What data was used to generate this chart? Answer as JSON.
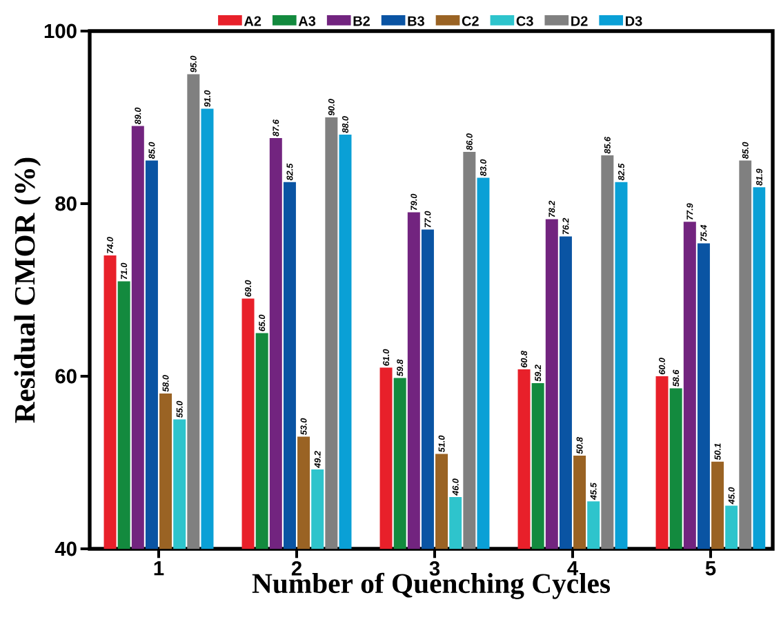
{
  "chart_data": {
    "type": "bar",
    "xlabel": "Number of Quenching Cycles",
    "ylabel": "Residual CMOR (%)",
    "categories": [
      "1",
      "2",
      "3",
      "4",
      "5"
    ],
    "ylim": [
      40,
      100
    ],
    "yticks": [
      40,
      60,
      80,
      100
    ],
    "legend": "top",
    "series": [
      {
        "name": "A2",
        "color": "#e8202a",
        "values": [
          74.0,
          69.0,
          61.0,
          60.8,
          60.0
        ],
        "value_labels": [
          "74.0",
          "69.0",
          "61.0",
          "60.8",
          "60.0"
        ]
      },
      {
        "name": "A3",
        "color": "#138a3e",
        "values": [
          71.0,
          65.0,
          59.8,
          59.2,
          58.6
        ],
        "value_labels": [
          "71.0",
          "65.0",
          "59.8",
          "59.2",
          "58.6"
        ]
      },
      {
        "name": "B2",
        "color": "#72247f",
        "values": [
          89.0,
          87.6,
          79.0,
          78.2,
          77.9
        ],
        "value_labels": [
          "89.0",
          "87.6",
          "79.0",
          "78.2",
          "77.9"
        ]
      },
      {
        "name": "B3",
        "color": "#0a54a3",
        "values": [
          85.0,
          82.5,
          77.0,
          76.2,
          75.4
        ],
        "value_labels": [
          "85.0",
          "82.5",
          "77.0",
          "76.2",
          "75.4"
        ]
      },
      {
        "name": "C2",
        "color": "#9a6324",
        "values": [
          58.0,
          53.0,
          51.0,
          50.8,
          50.1
        ],
        "value_labels": [
          "58.0",
          "53.0",
          "51.0",
          "50.8",
          "50.1"
        ]
      },
      {
        "name": "C3",
        "color": "#2ec4cc",
        "values": [
          55.0,
          49.2,
          46.0,
          45.5,
          45.0
        ],
        "value_labels": [
          "55.0",
          "49.2",
          "46.0",
          "45.5",
          "45.0"
        ]
      },
      {
        "name": "D2",
        "color": "#808080",
        "values": [
          95.0,
          90.0,
          86.0,
          85.6,
          85.0
        ],
        "value_labels": [
          "95.0",
          "90.0",
          "86.0",
          "85.6",
          "85.0"
        ]
      },
      {
        "name": "D3",
        "color": "#0aa0d6",
        "values": [
          91.0,
          88.0,
          83.0,
          82.5,
          81.9
        ],
        "value_labels": [
          "91.0",
          "88.0",
          "83.0",
          "82.5",
          "81.9"
        ]
      }
    ]
  }
}
